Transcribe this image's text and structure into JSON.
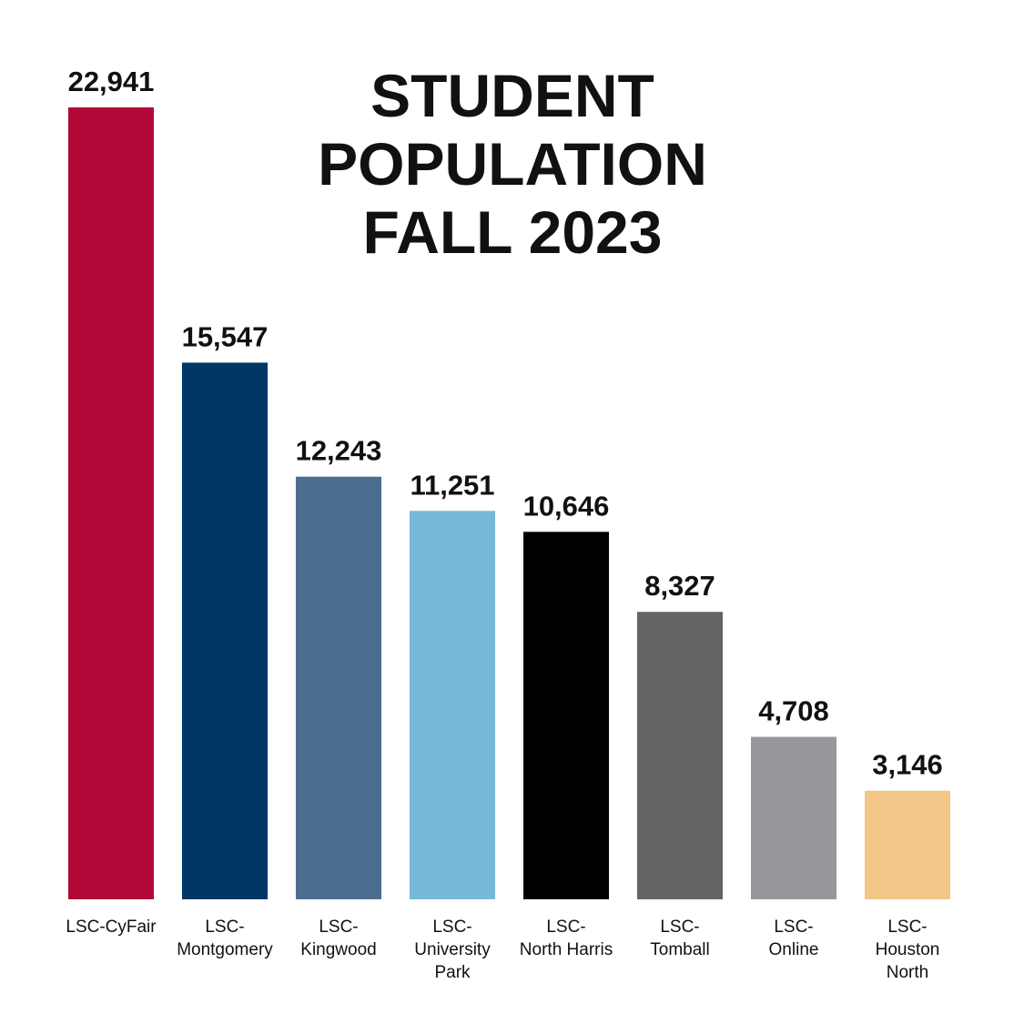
{
  "chart_data": {
    "type": "bar",
    "title_lines": [
      "STUDENT",
      "POPULATION",
      "FALL 2023"
    ],
    "categories": [
      "LSC-CyFair",
      "LSC-Montgomery",
      "LSC-Kingwood",
      "LSC-University Park",
      "LSC-North Harris",
      "LSC-Tomball",
      "LSC-Online",
      "LSC-Houston North"
    ],
    "category_label_lines": [
      [
        "LSC-CyFair"
      ],
      [
        "LSC-",
        "Montgomery"
      ],
      [
        "LSC-",
        "Kingwood"
      ],
      [
        "LSC-",
        "University",
        "Park"
      ],
      [
        "LSC-",
        "North Harris"
      ],
      [
        "LSC-",
        "Tomball"
      ],
      [
        "LSC-",
        "Online"
      ],
      [
        "LSC-",
        "Houston",
        "North"
      ]
    ],
    "values": [
      22941,
      15547,
      12243,
      11251,
      10646,
      8327,
      4708,
      3146
    ],
    "value_labels": [
      "22,941",
      "15,547",
      "12,243",
      "11,251",
      "10,646",
      "8,327",
      "4,708",
      "3,146"
    ],
    "colors": [
      "#b20838",
      "#003764",
      "#4b6d8f",
      "#78b8d8",
      "#000000",
      "#636466",
      "#97979b",
      "#f1c686"
    ],
    "ylim": [
      0,
      22941
    ],
    "grid": false,
    "legend": "none"
  }
}
